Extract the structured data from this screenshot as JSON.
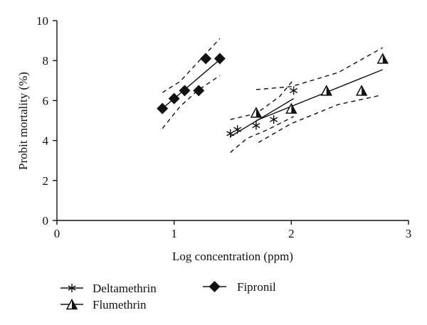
{
  "chart_data": {
    "type": "scatter",
    "title": "",
    "xlabel": "Log concentration (ppm)",
    "ylabel": "Probit mortality (%)",
    "xlim": [
      0,
      3
    ],
    "ylim": [
      0,
      10
    ],
    "xticks": [
      "0",
      "1",
      "2",
      "3"
    ],
    "yticks": [
      "0",
      "2",
      "4",
      "6",
      "8",
      "10"
    ],
    "grid": false,
    "legend_position": "bottom",
    "series": [
      {
        "name": "Deltamethrin",
        "marker": "asterisk",
        "x": [
          1.48,
          1.54,
          1.7,
          1.85,
          2.02
        ],
        "y": [
          4.35,
          4.55,
          4.75,
          5.05,
          6.5
        ],
        "fit": [
          [
            1.48,
            4.2
          ],
          [
            2.02,
            6.1
          ]
        ],
        "ci_upper": [
          [
            1.48,
            5.05
          ],
          [
            1.7,
            5.35
          ],
          [
            1.9,
            6.2
          ],
          [
            2.02,
            7.05
          ]
        ],
        "ci_lower": [
          [
            1.48,
            3.4
          ],
          [
            1.62,
            4.1
          ],
          [
            1.8,
            4.55
          ],
          [
            2.02,
            5.2
          ]
        ]
      },
      {
        "name": "Flumethrin",
        "marker": "half-filled-triangle",
        "x": [
          1.7,
          2.0,
          2.3,
          2.6,
          2.78
        ],
        "y": [
          5.4,
          5.6,
          6.5,
          6.5,
          8.1
        ],
        "fit": [
          [
            1.7,
            5.0
          ],
          [
            2.78,
            7.55
          ]
        ],
        "ci_upper": [
          [
            1.7,
            6.55
          ],
          [
            2.0,
            6.7
          ],
          [
            2.4,
            7.4
          ],
          [
            2.78,
            8.65
          ]
        ],
        "ci_lower": [
          [
            1.72,
            3.9
          ],
          [
            2.0,
            4.85
          ],
          [
            2.4,
            5.8
          ],
          [
            2.75,
            6.25
          ]
        ]
      },
      {
        "name": "Fipronil",
        "marker": "filled-diamond",
        "x": [
          0.9,
          1.0,
          1.09,
          1.21,
          1.27,
          1.39
        ],
        "y": [
          5.6,
          6.1,
          6.5,
          6.5,
          8.1,
          8.1
        ],
        "fit": [
          [
            0.9,
            5.6
          ],
          [
            1.39,
            8.05
          ]
        ],
        "ci_upper": [
          [
            0.9,
            6.4
          ],
          [
            1.05,
            6.95
          ],
          [
            1.2,
            7.9
          ],
          [
            1.39,
            9.1
          ]
        ],
        "ci_lower": [
          [
            0.9,
            4.6
          ],
          [
            1.05,
            5.7
          ],
          [
            1.2,
            6.5
          ],
          [
            1.39,
            7.25
          ]
        ]
      }
    ]
  }
}
